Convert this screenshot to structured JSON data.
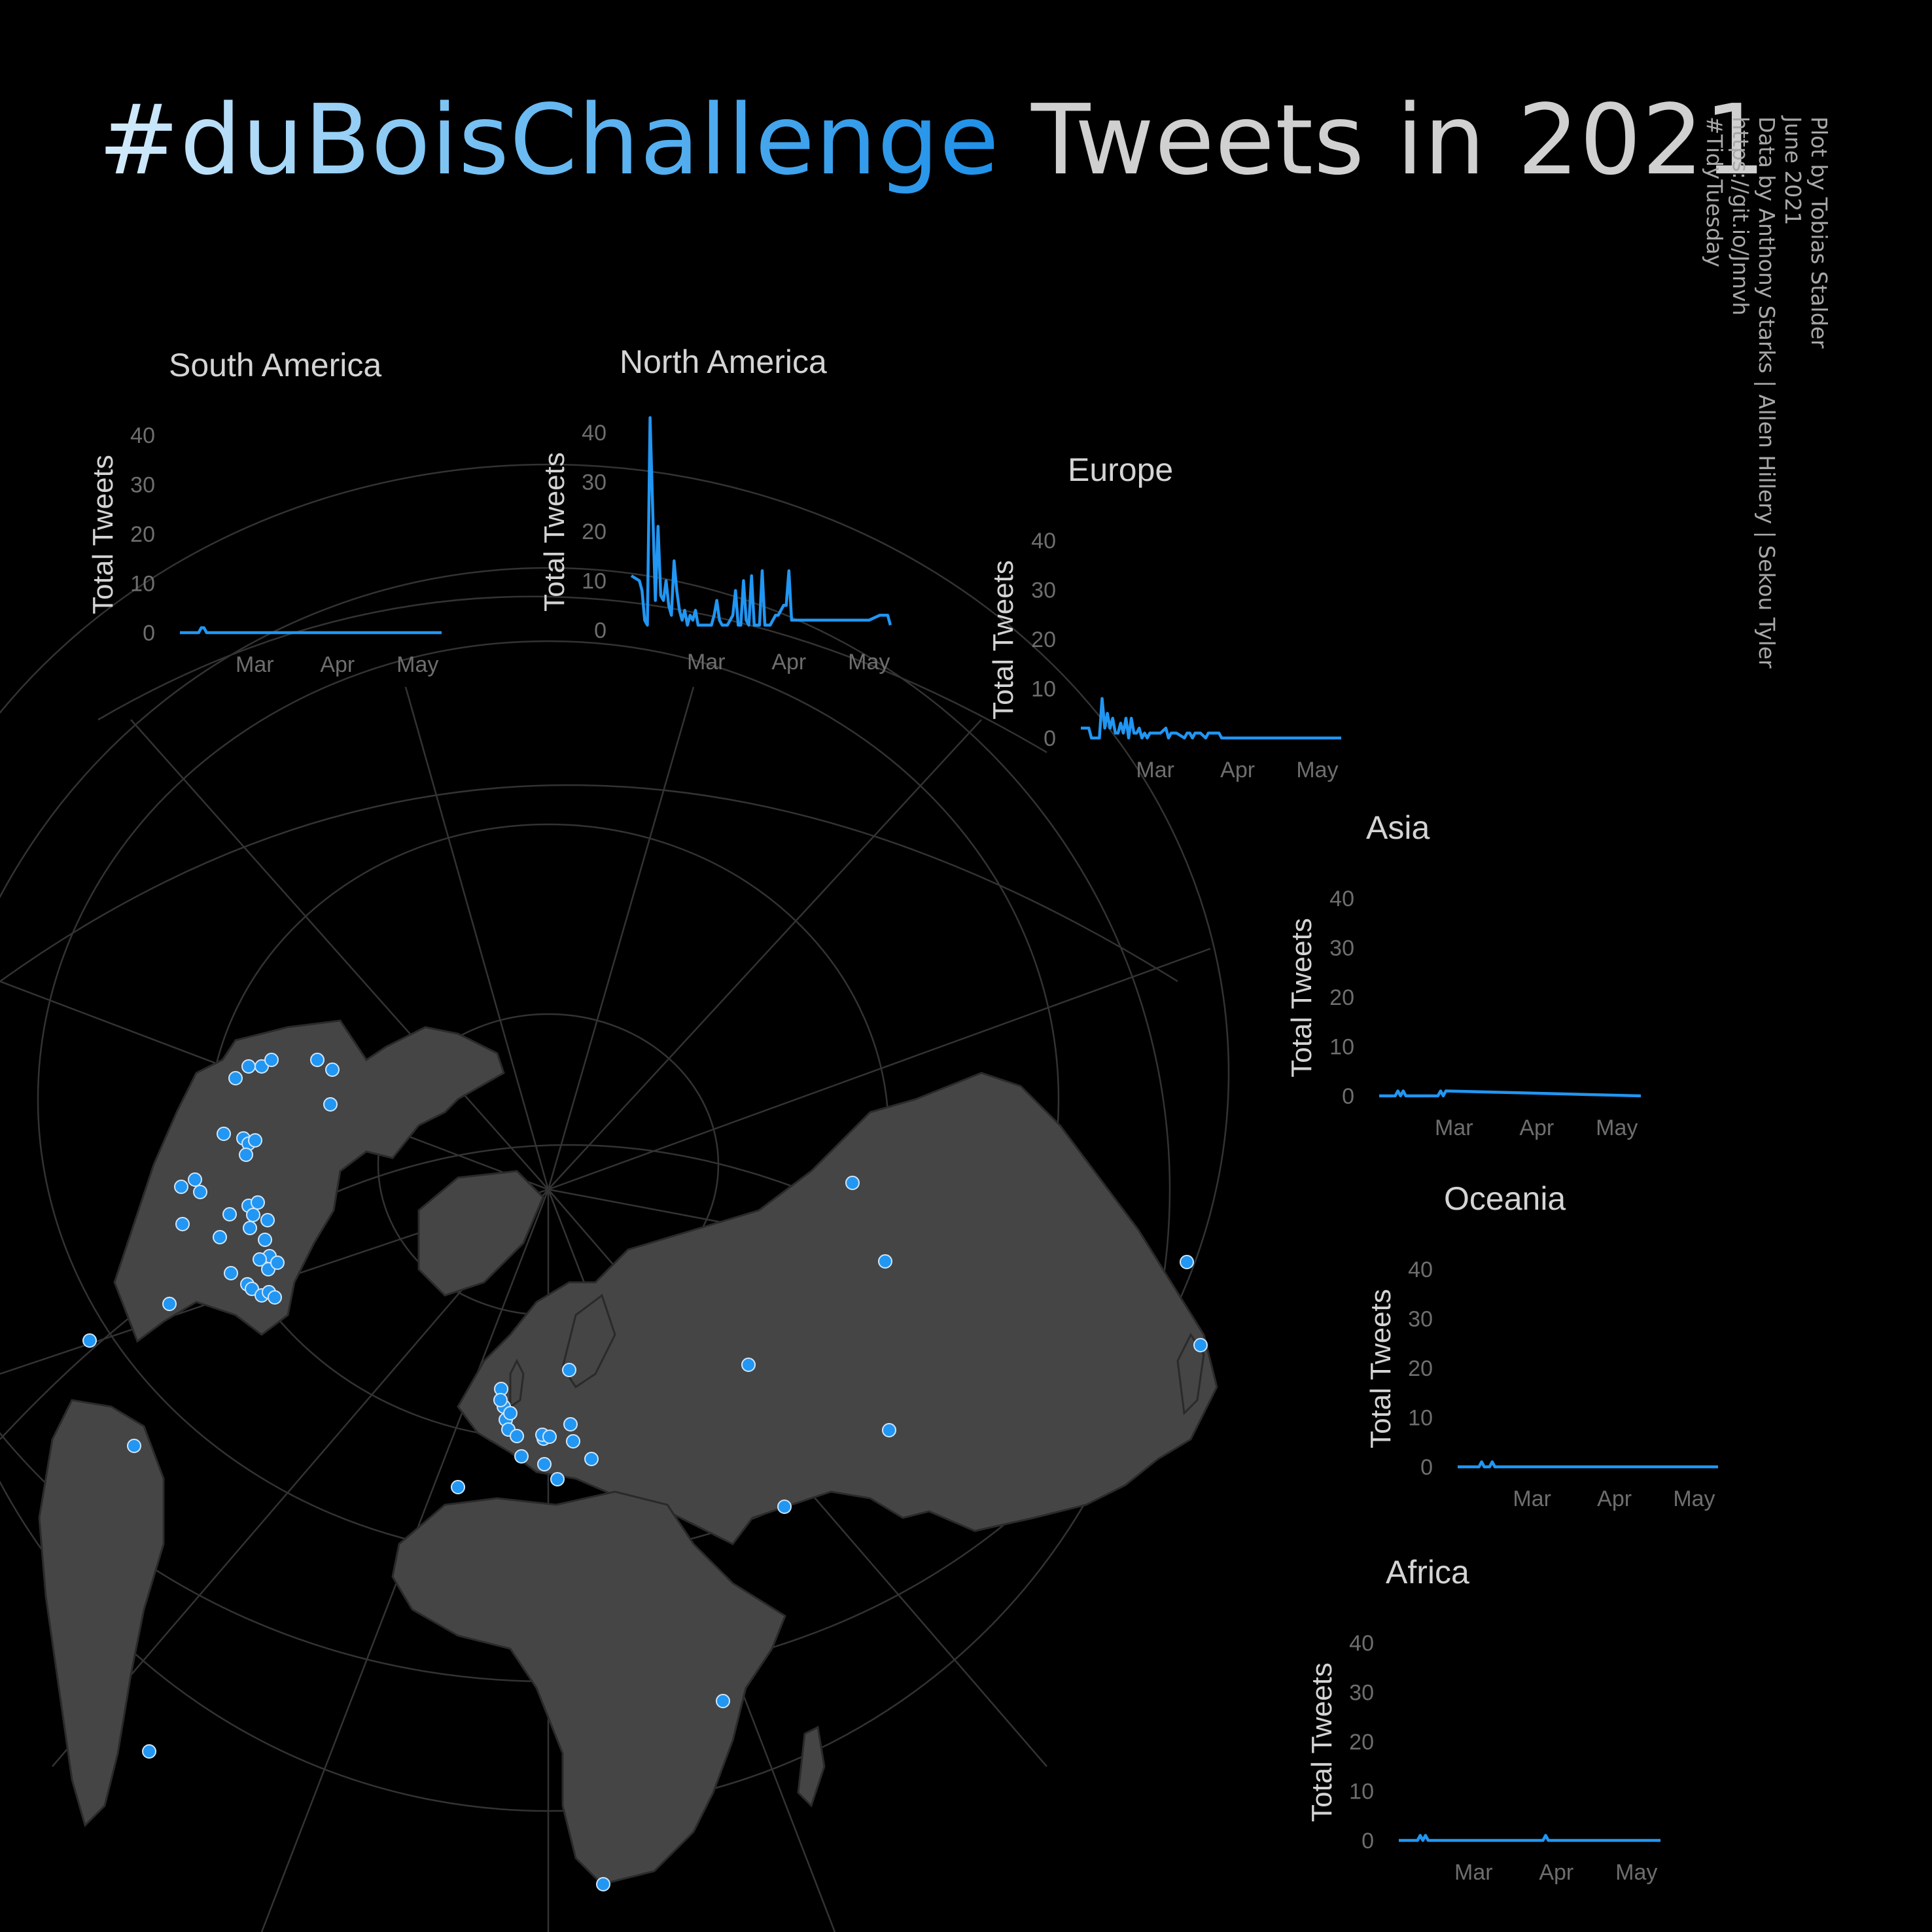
{
  "title": {
    "hashtag": "#duBoisChallenge",
    "rest": "Tweets in 2021"
  },
  "credits": [
    "Plot by Tobias Stalder",
    "June 2021",
    "Data by Anthony Starks  |  Allen Hillery  |  Sekou Tyler",
    "https://git.io/Jnnvh",
    "#TidyTuesday"
  ],
  "colors": {
    "background": "#000000",
    "line": "#2196f3",
    "land": "#454545",
    "graticule": "#333333",
    "point": "#2196f3"
  },
  "chart_data": [
    {
      "type": "line",
      "title": "South America",
      "ylabel": "Total Tweets",
      "yticks": [
        "0",
        "10",
        "20",
        "30",
        "40"
      ],
      "ylim": [
        0,
        40
      ],
      "xticks": [
        "Mar",
        "Apr",
        "May"
      ],
      "x_ticks_at": [
        "2021-03-01",
        "2021-04-01",
        "2021-05-01"
      ],
      "x_range": [
        "2021-02-01",
        "2021-05-10"
      ],
      "x": [
        "2021-02-01",
        "2021-02-08",
        "2021-02-09",
        "2021-02-10",
        "2021-02-11",
        "2021-05-10"
      ],
      "values": [
        0,
        0,
        1,
        1,
        0,
        0
      ]
    },
    {
      "type": "line",
      "title": "North America",
      "ylabel": "Total Tweets",
      "yticks": [
        "0",
        "10",
        "20",
        "30",
        "40"
      ],
      "ylim": [
        0,
        40
      ],
      "xticks": [
        "Mar",
        "Apr",
        "May"
      ],
      "x_ticks_at": [
        "2021-03-01",
        "2021-04-01",
        "2021-05-01"
      ],
      "x_range": [
        "2021-02-01",
        "2021-05-10"
      ],
      "x": [
        "2021-02-01",
        "2021-02-04",
        "2021-02-05",
        "2021-02-06",
        "2021-02-07",
        "2021-02-08",
        "2021-02-09",
        "2021-02-10",
        "2021-02-11",
        "2021-02-12",
        "2021-02-13",
        "2021-02-14",
        "2021-02-15",
        "2021-02-16",
        "2021-02-17",
        "2021-02-18",
        "2021-02-19",
        "2021-02-20",
        "2021-02-21",
        "2021-02-22",
        "2021-02-23",
        "2021-02-24",
        "2021-02-25",
        "2021-02-26",
        "2021-02-27",
        "2021-02-28",
        "2021-03-01",
        "2021-03-02",
        "2021-03-03",
        "2021-03-04",
        "2021-03-05",
        "2021-03-06",
        "2021-03-07",
        "2021-03-08",
        "2021-03-09",
        "2021-03-10",
        "2021-03-11",
        "2021-03-12",
        "2021-03-13",
        "2021-03-14",
        "2021-03-15",
        "2021-03-16",
        "2021-03-17",
        "2021-03-18",
        "2021-03-19",
        "2021-03-20",
        "2021-03-21",
        "2021-03-22",
        "2021-03-23",
        "2021-03-24",
        "2021-03-25",
        "2021-03-26",
        "2021-03-27",
        "2021-03-28",
        "2021-03-29",
        "2021-03-30",
        "2021-03-31",
        "2021-04-01",
        "2021-04-02",
        "2021-04-03",
        "2021-04-04",
        "2021-04-05",
        "2021-04-06",
        "2021-04-07",
        "2021-04-08",
        "2021-04-15",
        "2021-04-25",
        "2021-05-01",
        "2021-05-05",
        "2021-05-07",
        "2021-05-08",
        "2021-05-09"
      ],
      "values": [
        11,
        10,
        8,
        2,
        1,
        43,
        24,
        6,
        21,
        7,
        6,
        10,
        5,
        3,
        14,
        8,
        4,
        2,
        4,
        1,
        3,
        2,
        4,
        1,
        1,
        1,
        1,
        1,
        1,
        3,
        6,
        2,
        1,
        1,
        1,
        2,
        3,
        8,
        1,
        1,
        10,
        2,
        1,
        11,
        1,
        1,
        1,
        12,
        1,
        1,
        1,
        2,
        3,
        3,
        4,
        5,
        5,
        12,
        2,
        2,
        2,
        2,
        2,
        2,
        2,
        2,
        2,
        2,
        3,
        3,
        3,
        1
      ]
    },
    {
      "type": "line",
      "title": "Europe",
      "ylabel": "Total Tweets",
      "yticks": [
        "0",
        "10",
        "20",
        "30",
        "40"
      ],
      "ylim": [
        0,
        40
      ],
      "xticks": [
        "Mar",
        "Apr",
        "May"
      ],
      "x_ticks_at": [
        "2021-03-01",
        "2021-04-01",
        "2021-05-01"
      ],
      "x_range": [
        "2021-02-01",
        "2021-05-10"
      ],
      "x": [
        "2021-02-01",
        "2021-02-04",
        "2021-02-05",
        "2021-02-08",
        "2021-02-09",
        "2021-02-10",
        "2021-02-11",
        "2021-02-12",
        "2021-02-13",
        "2021-02-14",
        "2021-02-15",
        "2021-02-16",
        "2021-02-17",
        "2021-02-18",
        "2021-02-19",
        "2021-02-20",
        "2021-02-21",
        "2021-02-22",
        "2021-02-23",
        "2021-02-24",
        "2021-02-25",
        "2021-02-26",
        "2021-02-27",
        "2021-02-28",
        "2021-03-01",
        "2021-03-03",
        "2021-03-05",
        "2021-03-06",
        "2021-03-07",
        "2021-03-09",
        "2021-03-12",
        "2021-03-13",
        "2021-03-14",
        "2021-03-15",
        "2021-03-16",
        "2021-03-18",
        "2021-03-20",
        "2021-03-21",
        "2021-03-22",
        "2021-03-23",
        "2021-03-24",
        "2021-03-25",
        "2021-03-26",
        "2021-03-27",
        "2021-05-10"
      ],
      "values": [
        2,
        2,
        0,
        0,
        8,
        2,
        5,
        2,
        4,
        1,
        1,
        3,
        1,
        4,
        0,
        4,
        1,
        1,
        2,
        0,
        1,
        0,
        1,
        1,
        1,
        1,
        2,
        0,
        1,
        1,
        0,
        1,
        1,
        0,
        1,
        1,
        0,
        1,
        1,
        1,
        1,
        1,
        0,
        0,
        0
      ]
    },
    {
      "type": "line",
      "title": "Asia",
      "ylabel": "Total Tweets",
      "yticks": [
        "0",
        "10",
        "20",
        "30",
        "40"
      ],
      "ylim": [
        0,
        40
      ],
      "xticks": [
        "Mar",
        "Apr",
        "May"
      ],
      "x_ticks_at": [
        "2021-03-01",
        "2021-04-01",
        "2021-05-01"
      ],
      "x_range": [
        "2021-02-01",
        "2021-05-10"
      ],
      "x": [
        "2021-02-01",
        "2021-02-07",
        "2021-02-08",
        "2021-02-09",
        "2021-02-10",
        "2021-02-11",
        "2021-02-12",
        "2021-02-23",
        "2021-02-24",
        "2021-02-25",
        "2021-02-26",
        "2021-05-10"
      ],
      "values": [
        0,
        0,
        1,
        0,
        1,
        0,
        0,
        0,
        1,
        0,
        1,
        0
      ]
    },
    {
      "type": "line",
      "title": "Oceania",
      "ylabel": "Total Tweets",
      "yticks": [
        "0",
        "10",
        "20",
        "30",
        "40"
      ],
      "ylim": [
        0,
        40
      ],
      "xticks": [
        "Mar",
        "Apr",
        "May"
      ],
      "x_ticks_at": [
        "2021-03-01",
        "2021-04-01",
        "2021-05-01"
      ],
      "x_range": [
        "2021-02-01",
        "2021-05-10"
      ],
      "x": [
        "2021-02-01",
        "2021-02-09",
        "2021-02-10",
        "2021-02-11",
        "2021-02-13",
        "2021-02-14",
        "2021-02-15",
        "2021-05-10"
      ],
      "values": [
        0,
        0,
        1,
        0,
        0,
        1,
        0,
        0
      ]
    },
    {
      "type": "line",
      "title": "Africa",
      "ylabel": "Total Tweets",
      "yticks": [
        "0",
        "10",
        "20",
        "30",
        "40"
      ],
      "ylim": [
        0,
        40
      ],
      "xticks": [
        "Mar",
        "Apr",
        "May"
      ],
      "x_ticks_at": [
        "2021-03-01",
        "2021-04-01",
        "2021-05-01"
      ],
      "x_range": [
        "2021-02-01",
        "2021-05-10"
      ],
      "x": [
        "2021-02-01",
        "2021-02-08",
        "2021-02-09",
        "2021-02-10",
        "2021-02-11",
        "2021-02-12",
        "2021-02-13",
        "2021-03-27",
        "2021-03-28",
        "2021-03-29",
        "2021-05-10"
      ],
      "values": [
        0,
        0,
        1,
        0,
        1,
        0,
        0,
        0,
        1,
        0,
        0
      ]
    }
  ]
}
